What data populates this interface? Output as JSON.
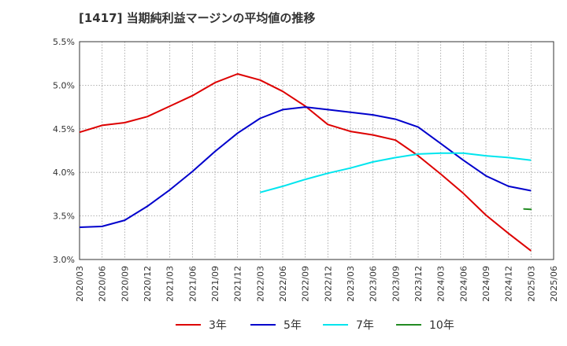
{
  "chart_data": {
    "type": "line",
    "title": "[1417]  当期純利益マージンの平均値の推移",
    "x": [
      "2020/03",
      "2020/06",
      "2020/09",
      "2020/12",
      "2021/03",
      "2021/06",
      "2021/09",
      "2021/12",
      "2022/03",
      "2022/06",
      "2022/09",
      "2022/12",
      "2023/03",
      "2023/06",
      "2023/09",
      "2023/12",
      "2024/03",
      "2024/06",
      "2024/09",
      "2024/12",
      "2025/03",
      "2025/06"
    ],
    "ylim": [
      3.0,
      5.5
    ],
    "yticks": [
      "3.0%",
      "3.5%",
      "4.0%",
      "4.5%",
      "5.0%",
      "5.5%"
    ],
    "ytick_values": [
      3.0,
      3.5,
      4.0,
      4.5,
      5.0,
      5.5
    ],
    "grid": true,
    "legend_position": "bottom",
    "series": [
      {
        "name": "3年",
        "color": "#dd0000",
        "values": [
          4.46,
          4.54,
          4.57,
          4.64,
          4.76,
          4.88,
          5.03,
          5.13,
          5.06,
          4.93,
          4.76,
          4.55,
          4.47,
          4.43,
          4.37,
          4.19,
          3.98,
          3.76,
          3.51,
          3.3,
          3.1,
          null
        ]
      },
      {
        "name": "5年",
        "color": "#0000cc",
        "values": [
          3.37,
          3.38,
          3.45,
          3.61,
          3.8,
          4.01,
          4.24,
          4.45,
          4.62,
          4.72,
          4.75,
          4.72,
          4.69,
          4.66,
          4.61,
          4.52,
          4.33,
          4.14,
          3.96,
          3.84,
          3.79,
          null
        ]
      },
      {
        "name": "7年",
        "color": "#00e5ee",
        "values": [
          null,
          null,
          null,
          null,
          null,
          null,
          null,
          null,
          3.77,
          3.84,
          3.92,
          3.99,
          4.05,
          4.12,
          4.17,
          4.21,
          4.22,
          4.22,
          4.19,
          4.17,
          4.14,
          null
        ]
      },
      {
        "name": "10年",
        "color": "#228b22",
        "values": [
          null,
          null,
          null,
          null,
          null,
          null,
          null,
          null,
          null,
          null,
          null,
          null,
          null,
          null,
          null,
          null,
          null,
          null,
          null,
          null,
          3.58,
          null
        ]
      }
    ]
  }
}
